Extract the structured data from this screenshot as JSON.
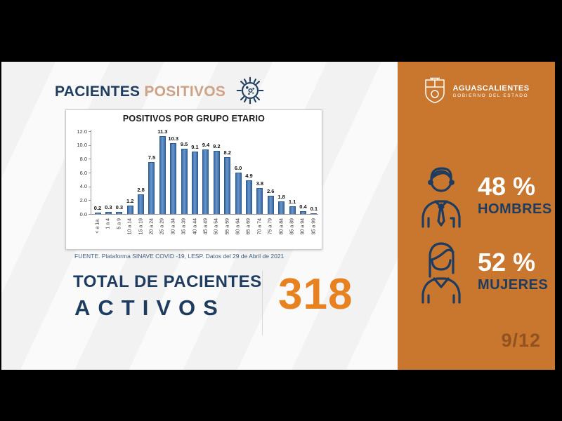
{
  "header": {
    "title_primary": "PACIENTES",
    "title_secondary": "POSITIVOS"
  },
  "main": {
    "source": "FUENTE. Plataforma SINAVE COVID -19, LESP. Datos del 29 de Abril de 2021",
    "total": {
      "label_line1": "TOTAL DE PACIENTES",
      "label_line2": "ACTIVOS",
      "value": "318"
    }
  },
  "sidebar": {
    "logo": {
      "name": "AGUASCALIENTES",
      "subtitle": "GOBIERNO DEL ESTADO"
    },
    "stats": [
      {
        "icon": "man-icon",
        "value": "48 %",
        "label": "HOMBRES"
      },
      {
        "icon": "woman-icon",
        "value": "52 %",
        "label": "MUJERES"
      }
    ],
    "page_indicator": "9/12"
  },
  "chart_data": {
    "type": "bar",
    "title": "POSITIVOS POR GRUPO ETARIO",
    "categories": [
      "< a 1a.",
      "1 a 4",
      "5 a 9",
      "10 a 14",
      "15 a 19",
      "20 a 24",
      "25 a 29",
      "30 a 34",
      "35 a 39",
      "40 a 44",
      "45 a 49",
      "50 a 54",
      "55 a 59",
      "60 a 64",
      "65 a 69",
      "70 a 74",
      "75 a 79",
      "80 a 84",
      "85 a 89",
      "90 a 94",
      "95 a 99"
    ],
    "values": [
      0.2,
      0.3,
      0.3,
      1.2,
      2.8,
      7.5,
      11.3,
      10.3,
      9.5,
      9.1,
      9.4,
      9.2,
      8.2,
      6.0,
      4.9,
      3.8,
      2.6,
      1.8,
      1.1,
      0.4,
      0.1
    ],
    "xlabel": "",
    "ylabel": "",
    "ylim": [
      0,
      12
    ],
    "yticks": [
      12,
      10,
      8,
      6,
      4,
      2,
      0
    ],
    "grid": false,
    "legend": false,
    "value_labels": true,
    "bar_color": "#4f81bd"
  },
  "colors": {
    "sidebar_orange": "#c9762f",
    "accent_orange": "#e8811f",
    "navy": "#1d3c5f",
    "bar_blue": "#4f81bd",
    "title_secondary": "#cfa285"
  }
}
